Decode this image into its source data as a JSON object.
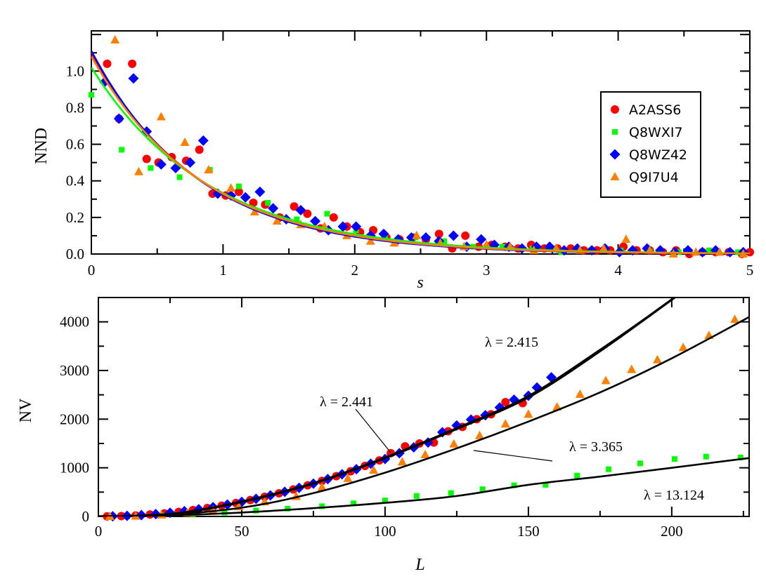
{
  "chart_data": [
    {
      "type": "scatter",
      "xlabel": "s",
      "ylabel": "NND",
      "xlim": [
        0,
        5
      ],
      "ylim": [
        0,
        1.22
      ],
      "xticks": [
        "0",
        "1",
        "2",
        "3",
        "4",
        "5"
      ],
      "yticks": [
        "0.0",
        "0.2",
        "0.4",
        "0.6",
        "0.8",
        "1.0"
      ],
      "grid": false,
      "legend_placement": "top-right",
      "series": [
        {
          "name": "A2ASS6",
          "marker": "circle",
          "color": "#ff0000",
          "x": [
            0.12,
            0.21,
            0.31,
            0.42,
            0.51,
            0.61,
            0.72,
            0.82,
            0.92,
            1.02,
            1.12,
            1.23,
            1.32,
            1.43,
            1.54,
            1.64,
            1.74,
            1.84,
            1.94,
            2.04,
            2.14,
            2.24,
            2.34,
            2.44,
            2.54,
            2.64,
            2.74,
            2.84,
            2.94,
            3.04,
            3.14,
            3.24,
            3.34,
            3.44,
            3.54,
            3.64,
            3.74,
            3.84,
            3.94,
            4.04,
            4.14,
            4.24,
            4.34,
            4.44,
            4.54,
            4.64,
            4.74,
            4.84,
            4.94,
            5.0
          ],
          "y": [
            1.04,
            0.74,
            1.04,
            0.52,
            0.5,
            0.53,
            0.51,
            0.57,
            0.33,
            0.32,
            0.34,
            0.28,
            0.27,
            0.2,
            0.26,
            0.22,
            0.14,
            0.2,
            0.15,
            0.12,
            0.13,
            0.09,
            0.08,
            0.09,
            0.08,
            0.11,
            0.03,
            0.1,
            0.04,
            0.05,
            0.04,
            0.03,
            0.05,
            0.03,
            0.03,
            0.03,
            0.02,
            0.02,
            0.02,
            0.04,
            0.02,
            0.02,
            0.01,
            0.02,
            0.0,
            0.01,
            0.01,
            0.01,
            0.0,
            0.01
          ]
        },
        {
          "name": "Q8WXI7",
          "marker": "square",
          "color": "#00ff00",
          "x": [
            0.0,
            0.23,
            0.45,
            0.67,
            0.9,
            1.12,
            1.34,
            1.56,
            1.79,
            2.01,
            2.23,
            2.46,
            2.68,
            2.9,
            3.12,
            3.35,
            3.57,
            3.79,
            4.02,
            4.24,
            4.46,
            4.69,
            4.91
          ],
          "y": [
            0.87,
            0.57,
            0.47,
            0.42,
            0.46,
            0.37,
            0.28,
            0.19,
            0.22,
            0.13,
            0.1,
            0.09,
            0.07,
            0.04,
            0.04,
            0.03,
            0.01,
            0.02,
            0.02,
            0.02,
            0.01,
            0.02,
            0.01
          ]
        },
        {
          "name": "Q8WZ42",
          "marker": "diamond",
          "color": "#0000ff",
          "x": [
            0.1,
            0.21,
            0.32,
            0.42,
            0.53,
            0.64,
            0.75,
            0.85,
            0.96,
            1.06,
            1.17,
            1.28,
            1.38,
            1.48,
            1.59,
            1.7,
            1.8,
            1.91,
            2.01,
            2.12,
            2.22,
            2.33,
            2.43,
            2.54,
            2.64,
            2.75,
            2.85,
            2.96,
            3.06,
            3.17,
            3.27,
            3.38,
            3.48,
            3.59,
            3.69,
            3.8,
            3.9,
            4.01,
            4.11,
            4.22,
            4.32,
            4.43,
            4.53,
            4.64,
            4.74,
            4.85,
            4.95
          ],
          "y": [
            0.94,
            0.74,
            0.96,
            0.67,
            0.49,
            0.47,
            0.5,
            0.62,
            0.33,
            0.32,
            0.31,
            0.34,
            0.25,
            0.19,
            0.24,
            0.18,
            0.13,
            0.15,
            0.15,
            0.1,
            0.11,
            0.08,
            0.09,
            0.09,
            0.07,
            0.1,
            0.04,
            0.08,
            0.05,
            0.04,
            0.03,
            0.04,
            0.04,
            0.02,
            0.03,
            0.02,
            0.03,
            0.01,
            0.02,
            0.03,
            0.02,
            0.01,
            0.02,
            0.01,
            0.02,
            0.01,
            0.01
          ]
        },
        {
          "name": "Q9I7U4",
          "marker": "triangle",
          "color": "#ff7f00",
          "x": [
            0.18,
            0.36,
            0.53,
            0.71,
            0.89,
            1.06,
            1.24,
            1.41,
            1.59,
            1.77,
            1.94,
            2.12,
            2.3,
            2.47,
            2.65,
            2.83,
            3.0,
            3.18,
            3.36,
            3.53,
            3.71,
            3.89,
            4.06,
            4.24,
            4.42,
            4.59,
            4.77,
            4.95
          ],
          "y": [
            1.17,
            0.45,
            0.75,
            0.61,
            0.46,
            0.36,
            0.23,
            0.18,
            0.16,
            0.15,
            0.1,
            0.07,
            0.06,
            0.1,
            0.06,
            0.04,
            0.05,
            0.04,
            0.02,
            0.03,
            0.02,
            0.03,
            0.08,
            0.02,
            0.0,
            0.01,
            0.01,
            0.0
          ]
        }
      ],
      "fits": [
        {
          "series": "A2ASS6",
          "color": "#ff0000",
          "a": 1.1,
          "b": 1.21
        },
        {
          "series": "Q8WZ42",
          "color": "#0000ff",
          "a": 1.11,
          "b": 1.23
        },
        {
          "series": "Q8WXI7",
          "color": "#00ff00",
          "a": 1.02,
          "b": 1.12
        },
        {
          "series": "Q9I7U4",
          "color": "#ff7f00",
          "a": 1.08,
          "b": 1.19
        }
      ]
    },
    {
      "type": "scatter",
      "xlabel": "L",
      "ylabel": "NV",
      "xlim": [
        0,
        227
      ],
      "ylim": [
        0,
        4500
      ],
      "xticks": [
        "0",
        "50",
        "100",
        "150",
        "200"
      ],
      "yticks": [
        "0",
        "1000",
        "2000",
        "3000",
        "4000"
      ],
      "grid": false,
      "series": [
        {
          "name": "A2ASS6",
          "marker": "circle",
          "color": "#ff0000",
          "x": [
            3,
            8,
            13,
            18,
            23,
            28,
            33,
            38,
            43,
            48,
            53,
            58,
            63,
            68,
            73,
            78,
            83,
            88,
            93,
            98,
            102,
            107,
            112,
            117,
            122,
            127,
            132,
            137,
            142,
            148
          ],
          "y": [
            1,
            8,
            20,
            39,
            63,
            94,
            131,
            173,
            222,
            276,
            337,
            404,
            476,
            555,
            640,
            730,
            827,
            929,
            1038,
            1152,
            1300,
            1440,
            1500,
            1520,
            1750,
            1840,
            2000,
            2100,
            2350,
            2330
          ]
        },
        {
          "name": "Q8WXI7",
          "marker": "square",
          "color": "#00ff00",
          "x": [
            10,
            22,
            33,
            44,
            55,
            66,
            78,
            89,
            100,
            111,
            123,
            134,
            145,
            156,
            167,
            178,
            189,
            201,
            212,
            224
          ],
          "y": [
            0,
            20,
            50,
            80,
            120,
            160,
            210,
            270,
            330,
            420,
            480,
            560,
            640,
            650,
            840,
            970,
            1090,
            1180,
            1230,
            1210
          ]
        },
        {
          "name": "Q8WZ42",
          "marker": "diamond",
          "color": "#0000ff",
          "x": [
            5,
            10,
            15,
            20,
            25,
            30,
            35,
            40,
            45,
            50,
            55,
            60,
            65,
            70,
            75,
            80,
            85,
            90,
            95,
            100,
            105,
            110,
            115,
            120,
            125,
            130,
            135,
            140,
            145,
            150,
            153,
            158
          ],
          "y": [
            3,
            12,
            27,
            48,
            75,
            108,
            147,
            192,
            243,
            300,
            363,
            432,
            507,
            588,
            675,
            768,
            867,
            972,
            1083,
            1180,
            1300,
            1420,
            1520,
            1730,
            1870,
            1990,
            2080,
            2240,
            2400,
            2480,
            2650,
            2860
          ]
        },
        {
          "name": "Q9I7U4",
          "marker": "triangle",
          "color": "#ff7f00",
          "x": [
            4,
            13,
            22,
            31,
            40,
            49,
            58,
            69,
            78,
            87,
            96,
            106,
            114,
            124,
            133,
            142,
            150,
            160,
            168,
            177,
            186,
            195,
            204,
            213,
            222
          ],
          "y": [
            0,
            5,
            30,
            70,
            130,
            200,
            300,
            410,
            600,
            780,
            950,
            1120,
            1270,
            1490,
            1660,
            1900,
            2100,
            2250,
            2510,
            2790,
            3020,
            3220,
            3470,
            3720,
            4050
          ]
        }
      ],
      "fits": [
        {
          "label": "λ = 2.415",
          "width": 3.4,
          "x": [
            0,
            10,
            20,
            30,
            50,
            75,
            100,
            125,
            150,
            175,
            201
          ],
          "y": [
            0,
            5,
            30,
            80,
            300,
            680,
            1200,
            1800,
            2450,
            3400,
            4500
          ]
        },
        {
          "label": "λ = 2.441",
          "width": 2.2,
          "x": [
            0,
            10,
            20,
            30,
            50,
            75,
            100,
            125,
            150,
            175,
            201
          ],
          "y": [
            0,
            6,
            32,
            84,
            310,
            690,
            1215,
            1820,
            2480,
            3430,
            4500
          ]
        },
        {
          "label": "λ = 3.365",
          "width": 2.6,
          "x": [
            0,
            20,
            50,
            75,
            100,
            125,
            150,
            175,
            200,
            227
          ],
          "y": [
            0,
            15,
            180,
            480,
            900,
            1400,
            1950,
            2550,
            3250,
            4100
          ]
        },
        {
          "label": "λ = 13.124",
          "width": 2.6,
          "x": [
            0,
            20,
            50,
            75,
            100,
            125,
            150,
            175,
            200,
            227
          ],
          "y": [
            0,
            10,
            80,
            170,
            280,
            420,
            650,
            820,
            1000,
            1200
          ]
        }
      ]
    }
  ]
}
